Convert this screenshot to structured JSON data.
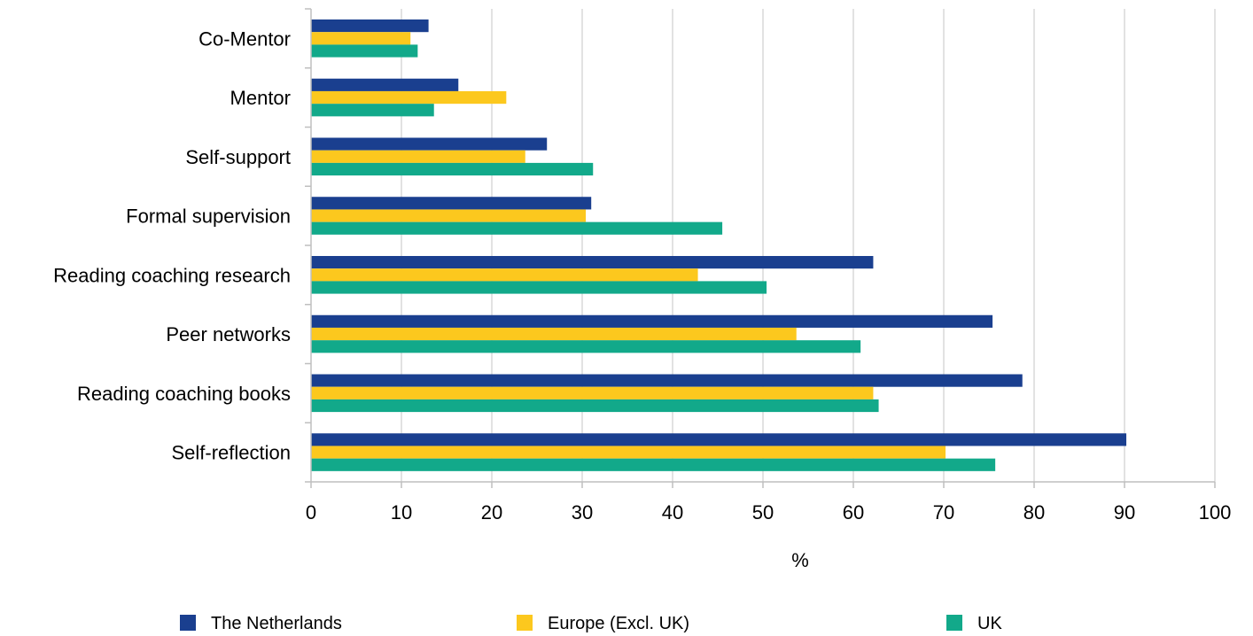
{
  "chart_data": {
    "type": "bar",
    "orientation": "horizontal",
    "categories": [
      "Co-Mentor",
      "Mentor",
      "Self-support",
      "Formal supervision",
      "Reading coaching research",
      "Peer networks",
      "Reading coaching books",
      "Self-reflection"
    ],
    "series": [
      {
        "name": "The Netherlands",
        "color": "#1a3f8f",
        "values": [
          13,
          16.3,
          26.1,
          31,
          62.2,
          75.4,
          78.7,
          90.2
        ]
      },
      {
        "name": "Europe (Excl. UK)",
        "color": "#fcc81e",
        "values": [
          11,
          21.6,
          23.7,
          30.4,
          42.8,
          53.7,
          62.2,
          70.2
        ]
      },
      {
        "name": "UK",
        "color": "#12a98a",
        "values": [
          11.8,
          13.6,
          31.2,
          45.5,
          50.4,
          60.8,
          62.8,
          75.7
        ]
      }
    ],
    "title": "",
    "xlabel": "%",
    "ylabel": "",
    "xlim": [
      0,
      100
    ],
    "xticks": [
      "0",
      "10",
      "20",
      "30",
      "40",
      "50",
      "60",
      "70",
      "80",
      "90",
      "100"
    ],
    "grid": "vertical",
    "legend": "bottom"
  }
}
